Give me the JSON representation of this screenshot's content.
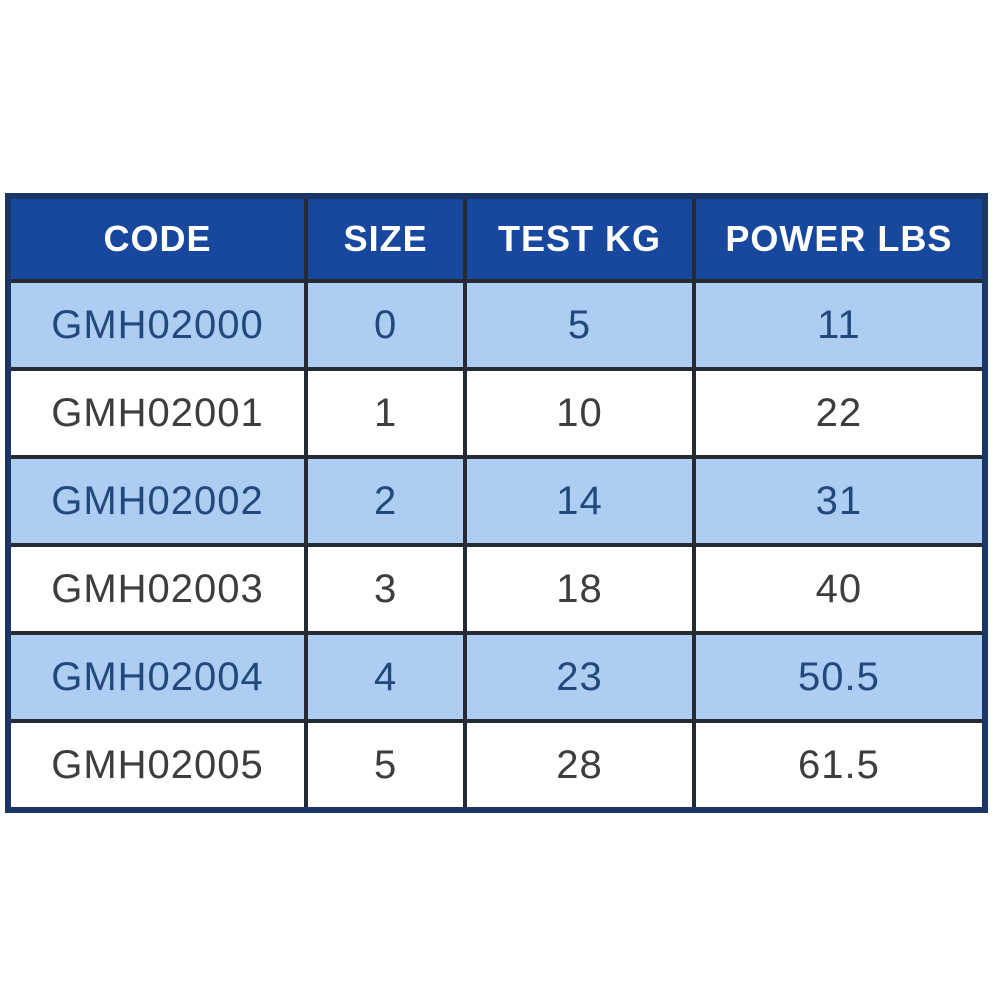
{
  "chart_data": {
    "type": "table",
    "title": "",
    "columns": [
      {
        "key": "code",
        "label": "CODE"
      },
      {
        "key": "size",
        "label": "SIZE"
      },
      {
        "key": "test_kg",
        "label": "TEST KG"
      },
      {
        "key": "power_lbs",
        "label": "POWER LBS"
      }
    ],
    "rows": [
      {
        "code": "GMH02000",
        "size": "0",
        "test_kg": "5",
        "power_lbs": "11"
      },
      {
        "code": "GMH02001",
        "size": "1",
        "test_kg": "10",
        "power_lbs": "22"
      },
      {
        "code": "GMH02002",
        "size": "2",
        "test_kg": "14",
        "power_lbs": "31"
      },
      {
        "code": "GMH02003",
        "size": "3",
        "test_kg": "18",
        "power_lbs": "40"
      },
      {
        "code": "GMH02004",
        "size": "4",
        "test_kg": "23",
        "power_lbs": "50.5"
      },
      {
        "code": "GMH02005",
        "size": "5",
        "test_kg": "28",
        "power_lbs": "61.5"
      }
    ]
  },
  "colors": {
    "page_background": "#ffffff",
    "header_bg": "#17489e",
    "header_text": "#ffffff",
    "row_alt_bg": "#aecdf3",
    "row_bg": "#ffffff",
    "navy_text": "#23497c",
    "dark_text": "#3d3d3d",
    "inner_border": "#262b33",
    "outer_border": "#1b3566"
  }
}
